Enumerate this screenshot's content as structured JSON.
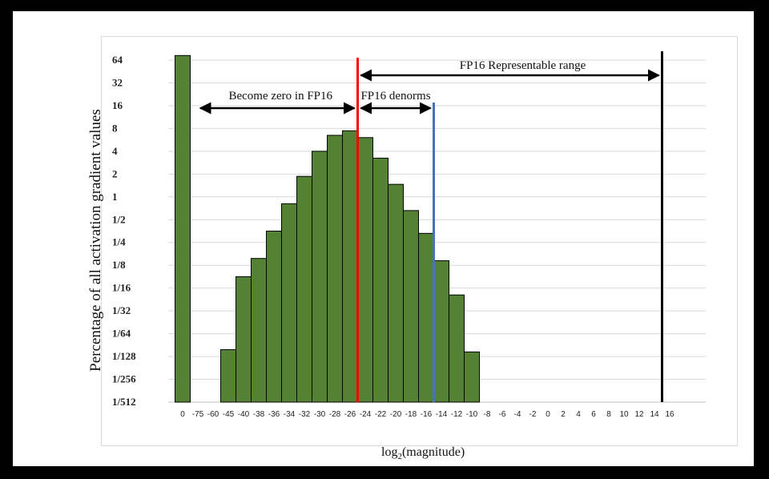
{
  "chart_data": {
    "type": "bar",
    "title": "",
    "xlabel_prefix": "log",
    "xlabel_sub": "2",
    "xlabel_suffix": "(magnitude)",
    "ylabel": "Percentage of all activation gradient values",
    "scale": "log2",
    "ylim_log2": [
      -9,
      6
    ],
    "ytick_labels": [
      "64",
      "32",
      "16",
      "8",
      "4",
      "2",
      "1",
      "1/2",
      "1/4",
      "1/8",
      "1/16",
      "1/32",
      "1/64",
      "1/128",
      "1/256",
      "1/512"
    ],
    "categories": [
      "0",
      "-75",
      "-60",
      "-45",
      "-40",
      "-38",
      "-36",
      "-34",
      "-32",
      "-30",
      "-28",
      "-26",
      "-24",
      "-22",
      "-20",
      "-18",
      "-16",
      "-14",
      "-12",
      "-10",
      "-8",
      "-6",
      "-4",
      "-2",
      "0",
      "2",
      "4",
      "6",
      "8",
      "10",
      "12",
      "14",
      "16"
    ],
    "values_log2": [
      6.2,
      null,
      null,
      -6.7,
      -3.5,
      -2.7,
      -1.5,
      -0.3,
      0.9,
      2.0,
      2.7,
      2.9,
      2.6,
      1.7,
      0.55,
      -0.6,
      -1.6,
      -2.8,
      -4.3,
      -6.8,
      null,
      null,
      null,
      null,
      null,
      null,
      null,
      null,
      null,
      null,
      null,
      null,
      null
    ],
    "bar_color": "#548235",
    "annotations": [
      {
        "label": "Become zero in FP16"
      },
      {
        "label": "FP16 denorms"
      },
      {
        "label": "FP16 Representable range"
      }
    ],
    "vlines": [
      {
        "at_category": "-24",
        "color": "#ff0000"
      },
      {
        "at_category": "-14",
        "color": "#4472c4"
      },
      {
        "at_category": "16",
        "color": "#000000"
      }
    ],
    "grid": true,
    "legend": "none"
  }
}
